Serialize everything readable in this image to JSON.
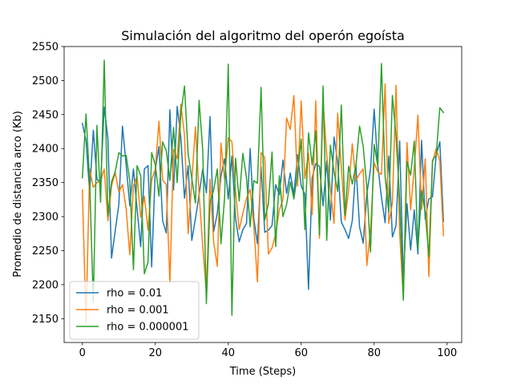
{
  "chart_data": {
    "type": "line",
    "title": "Simulación del algoritmo del operón egoísta",
    "xlabel": "Time (Steps)",
    "ylabel": "Promedio de distancia arco (Kb)",
    "xlim": [
      -5,
      104
    ],
    "ylim": [
      2115,
      2550
    ],
    "x_ticks": [
      0,
      20,
      40,
      60,
      80,
      100
    ],
    "y_ticks": [
      2150,
      2200,
      2250,
      2300,
      2350,
      2400,
      2450,
      2500,
      2550
    ],
    "grid": false,
    "legend_position": "lower-left",
    "series": [
      {
        "name": "rho = 0.01",
        "color": "#1f77b4",
        "values": [
          2437,
          2412,
          2335,
          2427,
          2355,
          2349,
          2461,
          2415,
          2239,
          2279,
          2318,
          2433,
          2376,
          2316,
          2370,
          2311,
          2256,
          2370,
          2375,
          2226,
          2369,
          2403,
          2294,
          2276,
          2457,
          2339,
          2462,
          2416,
          2327,
          2375,
          2265,
          2297,
          2332,
          2370,
          2335,
          2447,
          2278,
          2305,
          2360,
          2385,
          2326,
          2389,
          2297,
          2263,
          2281,
          2290,
          2400,
          2297,
          2260,
          2373,
          2277,
          2280,
          2287,
          2347,
          2332,
          2383,
          2334,
          2364,
          2332,
          2391,
          2345,
          2333,
          2193,
          2357,
          2378,
          2374,
          2316,
          2382,
          2295,
          2417,
          2380,
          2292,
          2281,
          2268,
          2294,
          2375,
          2285,
          2261,
          2334,
          2369,
          2458,
          2375,
          2328,
          2291,
          2389,
          2270,
          2287,
          2411,
          2208,
          2319,
          2251,
          2310,
          2245,
          2412,
          2296,
          2326,
          2329,
          2390,
          2410,
          2293
        ]
      },
      {
        "name": "rho = 0.001",
        "color": "#ff7f0e",
        "values": [
          2339,
          2145,
          2370,
          2343,
          2350,
          2352,
          2370,
          2294,
          2345,
          2365,
          2336,
          2347,
          2312,
          2244,
          2345,
          2359,
          2299,
          2330,
          2280,
          2354,
          2370,
          2440,
          2354,
          2347,
          2203,
          2399,
          2385,
          2465,
          2420,
          2275,
          2352,
          2432,
          2333,
          2257,
          2187,
          2355,
          2262,
          2227,
          2408,
          2355,
          2416,
          2410,
          2336,
          2281,
          2305,
          2327,
          2340,
          2287,
          2204,
          2394,
          2387,
          2245,
          2254,
          2275,
          2310,
          2325,
          2445,
          2428,
          2478,
          2345,
          2470,
          2356,
          2393,
          2303,
          2470,
          2268,
          2469,
          2390,
          2340,
          2290,
          2452,
          2372,
          2295,
          2339,
          2407,
          2353,
          2363,
          2370,
          2228,
          2281,
          2379,
          2366,
          2362,
          2495,
          2290,
          2320,
          2493,
          2275,
          2180,
          2409,
          2310,
          2372,
          2449,
          2310,
          2385,
          2212,
          2380,
          2400,
          2382,
          2272
        ]
      },
      {
        "name": "rho = 0.000001",
        "color": "#2ca02c",
        "values": [
          2357,
          2451,
          2352,
          2174,
          2434,
          2321,
          2530,
          2302,
          2351,
          2366,
          2394,
          2389,
          2390,
          2353,
          2222,
          2375,
          2360,
          2216,
          2233,
          2394,
          2376,
          2330,
          2410,
          2397,
          2353,
          2431,
          2350,
          2451,
          2492,
          2392,
          2356,
          2320,
          2471,
          2398,
          2172,
          2321,
          2339,
          2370,
          2260,
          2328,
          2524,
          2155,
          2386,
          2323,
          2393,
          2357,
          2285,
          2353,
          2349,
          2490,
          2295,
          2319,
          2395,
          2256,
          2360,
          2300,
          2318,
          2351,
          2326,
          2364,
          2414,
          2281,
          2423,
          2376,
          2426,
          2273,
          2492,
          2265,
          2405,
          2366,
          2337,
          2464,
          2302,
          2374,
          2348,
          2375,
          2433,
          2403,
          2343,
          2248,
          2406,
          2374,
          2525,
          2359,
          2307,
          2478,
          2418,
          2324,
          2177,
          2381,
          2361,
          2411,
          2252,
          2338,
          2306,
          2241,
          2383,
          2390,
          2460,
          2453
        ]
      }
    ]
  }
}
